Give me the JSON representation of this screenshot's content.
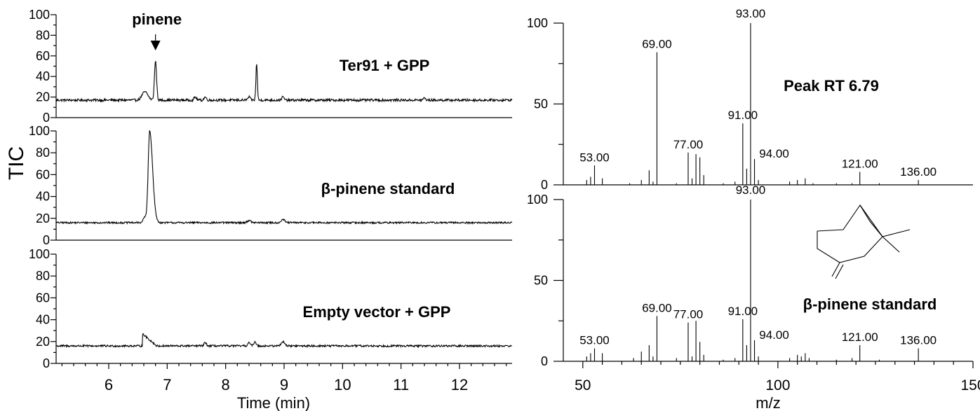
{
  "chart_data": [
    {
      "type": "line",
      "panel": "gc-chromatograms",
      "ylabel": "TIC",
      "xlabel": "Time (min)",
      "xlim": [
        5.1,
        12.9
      ],
      "ylim": [
        0,
        100
      ],
      "x_ticks": [
        6,
        7,
        8,
        9,
        10,
        11,
        12
      ],
      "y_ticks": [
        0,
        20,
        40,
        60,
        80,
        100
      ],
      "annotation": {
        "label": "pinene",
        "x": 6.8
      },
      "series": [
        {
          "name": "Ter91 + GPP",
          "baseline": 17,
          "noise": 1.2,
          "peaks": [
            [
              6.62,
              8,
              0.05
            ],
            [
              6.8,
              38,
              0.018
            ],
            [
              7.48,
              3,
              0.02
            ],
            [
              7.65,
              3,
              0.02
            ],
            [
              8.4,
              3,
              0.02
            ],
            [
              8.53,
              36,
              0.012
            ],
            [
              8.98,
              3,
              0.02
            ],
            [
              11.4,
              2,
              0.02
            ]
          ]
        },
        {
          "name": "β-pinene standard",
          "baseline": 16,
          "noise": 0.8,
          "peaks": [
            [
              6.62,
              5,
              0.03
            ],
            [
              6.7,
              84,
              0.045
            ],
            [
              8.4,
              2,
              0.03
            ],
            [
              8.98,
              3,
              0.03
            ]
          ]
        },
        {
          "name": "Empty vector + GPP",
          "baseline": 16,
          "noise": 0.9,
          "peaks": [
            [
              6.65,
              11,
              0.07
            ],
            [
              7.65,
              3,
              0.02
            ],
            [
              8.4,
              3,
              0.02
            ],
            [
              8.5,
              4,
              0.02
            ],
            [
              8.98,
              4,
              0.03
            ]
          ]
        }
      ]
    },
    {
      "type": "bar",
      "panel": "mass-spectra",
      "xlabel": "m/z",
      "xlim": [
        45,
        150
      ],
      "ylim": [
        0,
        100
      ],
      "x_ticks": [
        50,
        100,
        150
      ],
      "y_ticks": [
        0,
        50,
        100
      ],
      "series": [
        {
          "name": "Peak RT 6.79",
          "peaks": [
            [
              51,
              3
            ],
            [
              52,
              5
            ],
            [
              53,
              12
            ],
            [
              55,
              4
            ],
            [
              62,
              1
            ],
            [
              65,
              3
            ],
            [
              67,
              9
            ],
            [
              68,
              2
            ],
            [
              69,
              82
            ],
            [
              74,
              1
            ],
            [
              77,
              20
            ],
            [
              78,
              4
            ],
            [
              79,
              19
            ],
            [
              80,
              17
            ],
            [
              81,
              6
            ],
            [
              86,
              1
            ],
            [
              89,
              2
            ],
            [
              91,
              38
            ],
            [
              92,
              10
            ],
            [
              93,
              100
            ],
            [
              94,
              16
            ],
            [
              95,
              3
            ],
            [
              103,
              2
            ],
            [
              105,
              3
            ],
            [
              107,
              4
            ],
            [
              109,
              1
            ],
            [
              115,
              1
            ],
            [
              119,
              1
            ],
            [
              121,
              8
            ],
            [
              126,
              1
            ],
            [
              136,
              3
            ]
          ],
          "labels": [
            {
              "mz": 53,
              "text": "53.00"
            },
            {
              "mz": 69,
              "text": "69.00"
            },
            {
              "mz": 77,
              "text": "77.00"
            },
            {
              "mz": 91,
              "text": "91.00"
            },
            {
              "mz": 93,
              "text": "93.00"
            },
            {
              "mz": 94,
              "text": "94.00"
            },
            {
              "mz": 121,
              "text": "121.00"
            },
            {
              "mz": 136,
              "text": "136.00"
            }
          ]
        },
        {
          "name": "β-pinene standard",
          "peaks": [
            [
              51,
              3
            ],
            [
              52,
              5
            ],
            [
              53,
              8
            ],
            [
              55,
              5
            ],
            [
              63,
              2
            ],
            [
              65,
              6
            ],
            [
              67,
              10
            ],
            [
              68,
              3
            ],
            [
              69,
              28
            ],
            [
              74,
              2
            ],
            [
              77,
              24
            ],
            [
              78,
              3
            ],
            [
              79,
              25
            ],
            [
              80,
              12
            ],
            [
              81,
              4
            ],
            [
              86,
              1
            ],
            [
              89,
              2
            ],
            [
              91,
              26
            ],
            [
              92,
              10
            ],
            [
              93,
              100
            ],
            [
              94,
              13
            ],
            [
              95,
              3
            ],
            [
              103,
              2
            ],
            [
              105,
              4
            ],
            [
              106,
              3
            ],
            [
              107,
              5
            ],
            [
              108,
              2
            ],
            [
              115,
              1
            ],
            [
              119,
              2
            ],
            [
              121,
              10
            ],
            [
              126,
              1
            ],
            [
              136,
              8
            ]
          ],
          "labels": [
            {
              "mz": 53,
              "text": "53.00"
            },
            {
              "mz": 69,
              "text": "69.00"
            },
            {
              "mz": 77,
              "text": "77.00"
            },
            {
              "mz": 91,
              "text": "91.00"
            },
            {
              "mz": 93,
              "text": "93.00"
            },
            {
              "mz": 94,
              "text": "94.00"
            },
            {
              "mz": 121,
              "text": "121.00"
            },
            {
              "mz": 136,
              "text": "136.00"
            }
          ]
        }
      ]
    }
  ]
}
